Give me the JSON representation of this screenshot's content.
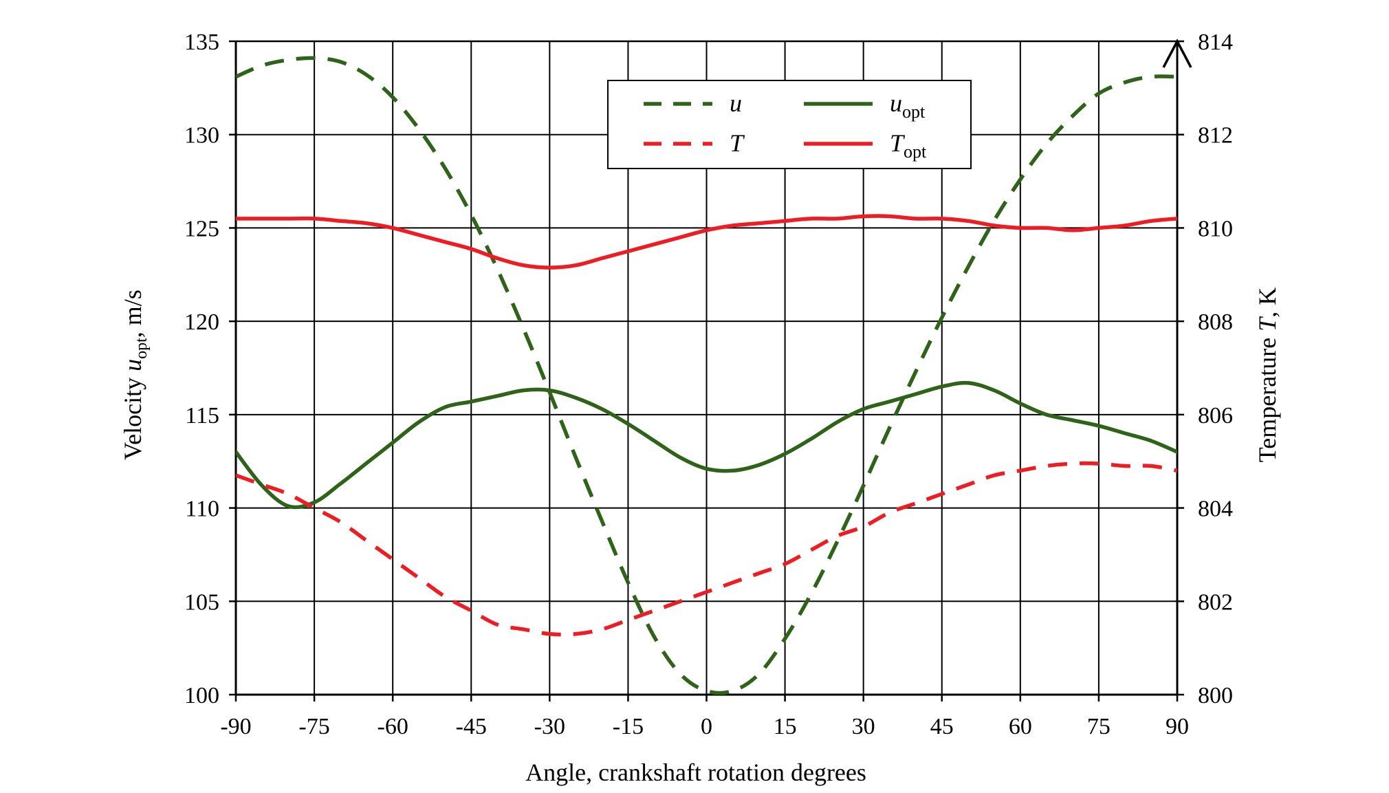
{
  "chart_data": {
    "type": "line",
    "xlabel": "Angle, crankshaft rotation degrees",
    "ylabel_left": {
      "prefix": "Velocity ",
      "italic": "u",
      "sub": "opt",
      "suffix": ", m/s"
    },
    "ylabel_right": {
      "prefix": "Temperature ",
      "italic": "T",
      "suffix": ", K"
    },
    "xlim": [
      -90,
      90
    ],
    "x_ticks": [
      -90,
      -75,
      -60,
      -45,
      -30,
      -15,
      0,
      15,
      30,
      45,
      60,
      75,
      90
    ],
    "ylim_left": [
      100,
      135
    ],
    "y_ticks_left": [
      100,
      105,
      110,
      115,
      120,
      125,
      130,
      135
    ],
    "ylim_right": [
      800,
      814
    ],
    "y_ticks_right": [
      800,
      802,
      804,
      806,
      808,
      810,
      812,
      814
    ],
    "grid": true,
    "legend_position": "top-center",
    "series": [
      {
        "name": "u",
        "name_sub": "",
        "axis": "left",
        "style": "dashed",
        "color": "#2e6319",
        "x": [
          -90,
          -85,
          -80,
          -75,
          -70,
          -65,
          -60,
          -55,
          -50,
          -45,
          -40,
          -35,
          -30,
          -25,
          -20,
          -15,
          -10,
          -5,
          0,
          5,
          10,
          15,
          20,
          25,
          30,
          35,
          40,
          45,
          50,
          55,
          60,
          65,
          70,
          75,
          80,
          85,
          90
        ],
        "y": [
          133.1,
          133.7,
          134.0,
          134.1,
          133.9,
          133.2,
          132.0,
          130.3,
          128.2,
          125.7,
          122.8,
          119.6,
          116.2,
          112.7,
          109.3,
          106.0,
          103.1,
          101.1,
          100.2,
          100.2,
          101.1,
          103.0,
          105.4,
          108.2,
          111.2,
          114.3,
          117.3,
          120.2,
          122.9,
          125.4,
          127.6,
          129.5,
          131.0,
          132.2,
          132.8,
          133.1,
          133.1
        ]
      },
      {
        "name": "u",
        "name_sub": "opt",
        "axis": "left",
        "style": "solid",
        "color": "#2e6319",
        "x": [
          -90,
          -85,
          -80,
          -75,
          -70,
          -65,
          -60,
          -55,
          -50,
          -45,
          -40,
          -35,
          -30,
          -25,
          -20,
          -15,
          -10,
          -5,
          0,
          5,
          10,
          15,
          20,
          25,
          30,
          35,
          40,
          45,
          50,
          55,
          60,
          65,
          70,
          75,
          80,
          85,
          90
        ],
        "y": [
          113.0,
          111.2,
          110.1,
          110.3,
          111.3,
          112.4,
          113.5,
          114.6,
          115.4,
          115.7,
          116.0,
          116.3,
          116.3,
          115.9,
          115.3,
          114.5,
          113.6,
          112.7,
          112.1,
          112.0,
          112.3,
          112.9,
          113.7,
          114.6,
          115.3,
          115.7,
          116.1,
          116.5,
          116.7,
          116.3,
          115.6,
          115.0,
          114.7,
          114.4,
          114.0,
          113.6,
          113.0
        ]
      },
      {
        "name": "T",
        "name_sub": "",
        "axis": "right",
        "style": "dashed",
        "color": "#ee1c23",
        "x": [
          -90,
          -85,
          -80,
          -75,
          -70,
          -65,
          -60,
          -55,
          -50,
          -45,
          -40,
          -35,
          -30,
          -25,
          -20,
          -15,
          -10,
          -5,
          0,
          5,
          10,
          15,
          20,
          25,
          30,
          35,
          40,
          45,
          50,
          55,
          60,
          65,
          70,
          75,
          80,
          85,
          90
        ],
        "y": [
          804.7,
          804.5,
          804.3,
          804.0,
          803.7,
          803.3,
          802.9,
          802.5,
          802.1,
          801.8,
          801.5,
          801.4,
          801.3,
          801.3,
          801.4,
          801.6,
          801.8,
          802.0,
          802.2,
          802.4,
          802.6,
          802.8,
          803.1,
          803.4,
          803.6,
          803.9,
          804.1,
          804.3,
          804.5,
          804.7,
          804.8,
          804.9,
          804.95,
          804.95,
          804.9,
          804.9,
          804.8
        ]
      },
      {
        "name": "T",
        "name_sub": "opt",
        "axis": "right",
        "style": "solid",
        "color": "#ee1c23",
        "x": [
          -90,
          -85,
          -80,
          -75,
          -70,
          -65,
          -60,
          -55,
          -50,
          -45,
          -40,
          -35,
          -30,
          -25,
          -20,
          -15,
          -10,
          -5,
          0,
          5,
          10,
          15,
          20,
          25,
          30,
          35,
          40,
          45,
          50,
          55,
          60,
          65,
          70,
          75,
          80,
          85,
          90
        ],
        "y": [
          810.2,
          810.2,
          810.2,
          810.2,
          810.15,
          810.1,
          810.0,
          809.85,
          809.7,
          809.55,
          809.35,
          809.2,
          809.15,
          809.2,
          809.35,
          809.5,
          809.65,
          809.8,
          809.95,
          810.05,
          810.1,
          810.15,
          810.2,
          810.2,
          810.25,
          810.25,
          810.2,
          810.2,
          810.15,
          810.05,
          810.0,
          810.0,
          809.95,
          810.0,
          810.05,
          810.15,
          810.2
        ]
      }
    ]
  }
}
